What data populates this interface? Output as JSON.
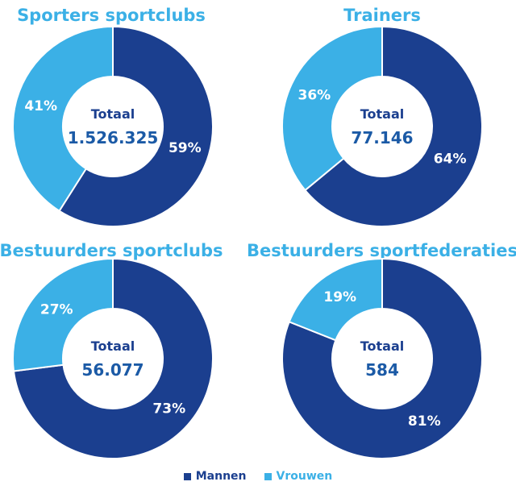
{
  "colors": {
    "mannen": "#1b3f8f",
    "vrouwen": "#3bb0e6",
    "title": "#3bb0e6",
    "center_label": "#1b3f8f",
    "center_value": "#1b5aa6"
  },
  "center_label": "Totaal",
  "legend": [
    {
      "label": "Mannen",
      "color": "#1b3f8f"
    },
    {
      "label": "Vrouwen",
      "color": "#3bb0e6"
    }
  ],
  "chart_data": [
    {
      "type": "pie",
      "title": "Sporters sportclubs",
      "total": "1.526.325",
      "categories": [
        "Mannen",
        "Vrouwen"
      ],
      "values": [
        59,
        41
      ],
      "labels": [
        "59%",
        "41%"
      ]
    },
    {
      "type": "pie",
      "title": "Trainers",
      "total": "77.146",
      "categories": [
        "Mannen",
        "Vrouwen"
      ],
      "values": [
        64,
        36
      ],
      "labels": [
        "64%",
        "36%"
      ]
    },
    {
      "type": "pie",
      "title": "Bestuurders sportclubs",
      "total": "56.077",
      "categories": [
        "Mannen",
        "Vrouwen"
      ],
      "values": [
        73,
        27
      ],
      "labels": [
        "73%",
        "27%"
      ]
    },
    {
      "type": "pie",
      "title": "Bestuurders sportfederaties",
      "total": "584",
      "categories": [
        "Mannen",
        "Vrouwen"
      ],
      "values": [
        81,
        19
      ],
      "labels": [
        "81%",
        "19%"
      ]
    }
  ]
}
